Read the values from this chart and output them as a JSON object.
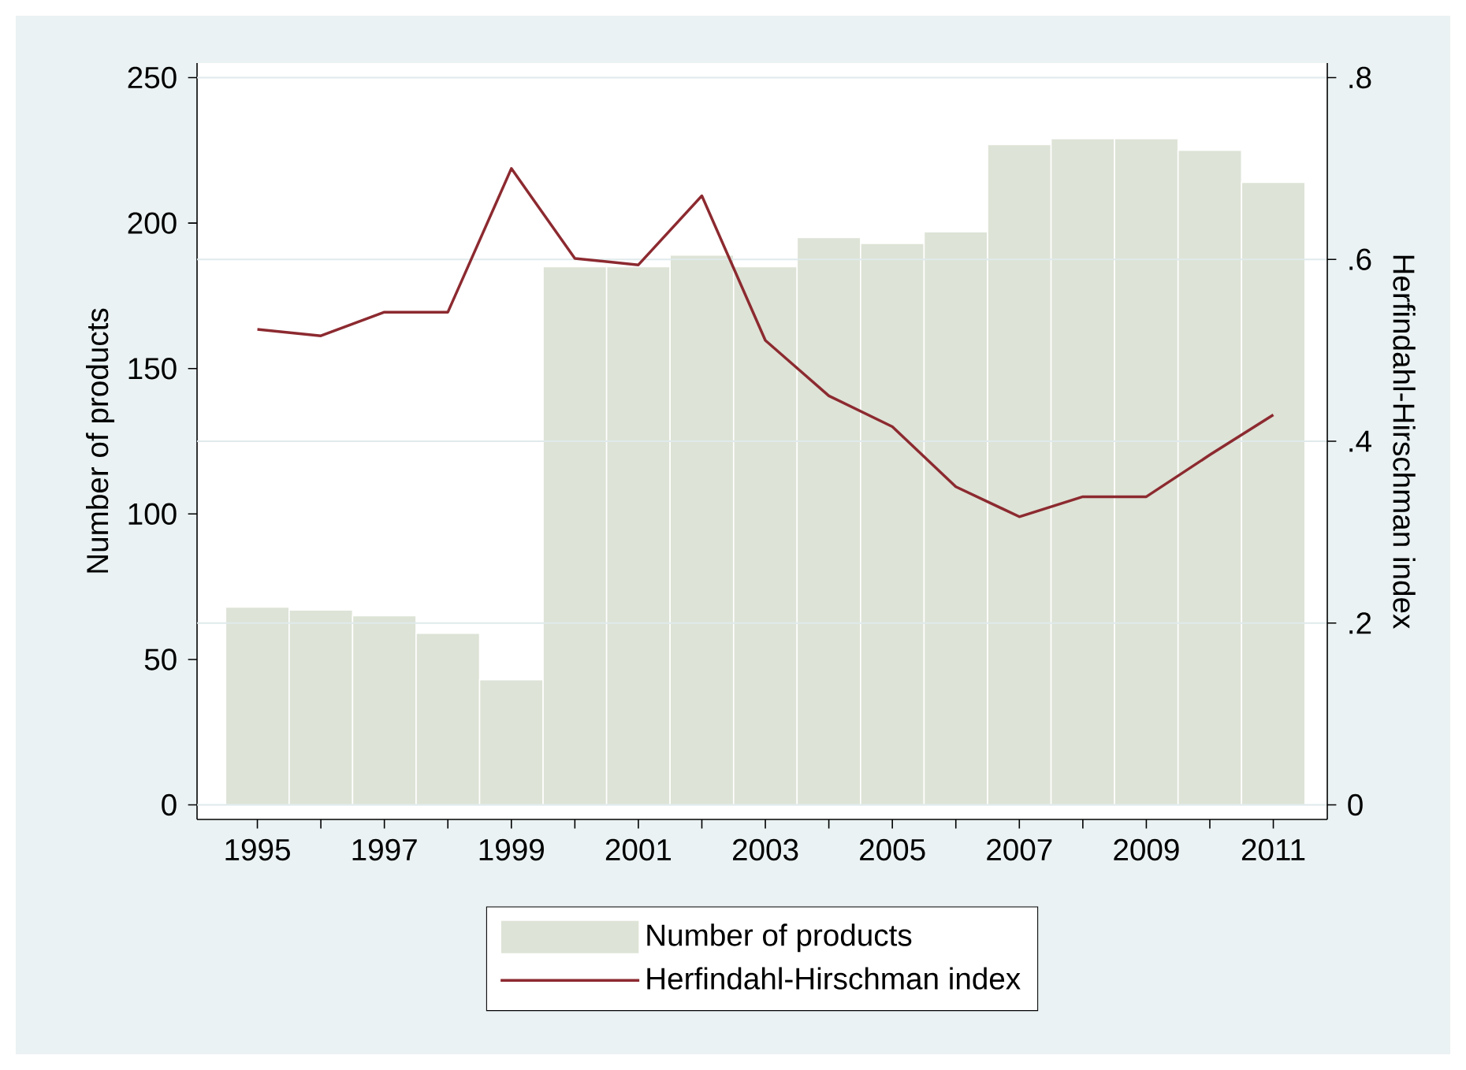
{
  "chart_data": {
    "type": "bar",
    "ylabel": "Number of products",
    "y2label": "Herfindahl-Hirschman index",
    "x": [
      1995,
      1996,
      1997,
      1998,
      1999,
      2000,
      2001,
      2002,
      2003,
      2004,
      2005,
      2006,
      2007,
      2008,
      2009,
      2010,
      2011
    ],
    "series": [
      {
        "name": "Number of products",
        "color": "#dde3d6",
        "values": [
          68,
          67,
          65,
          59,
          43,
          185,
          185,
          189,
          185,
          195,
          193,
          197,
          227,
          229,
          229,
          225,
          214
        ]
      },
      {
        "name": "Herfindahl-Hirschman index",
        "type": "line",
        "axis": "y2",
        "color": "#8c2a30",
        "values": [
          0.523,
          0.516,
          0.542,
          0.542,
          0.7,
          0.601,
          0.594,
          0.67,
          0.511,
          0.45,
          0.416,
          0.35,
          0.317,
          0.339,
          0.339,
          0.385,
          0.429
        ]
      }
    ],
    "xlim": [
      1994.05,
      2011.85
    ],
    "xticks": [
      1995,
      {
        "value": 1996,
        "label": null
      },
      1997,
      {
        "value": 1998,
        "label": null
      },
      1999,
      {
        "value": 2000,
        "label": null
      },
      2001,
      {
        "value": 2002,
        "label": null
      },
      2003,
      {
        "value": 2004,
        "label": null
      },
      2005,
      {
        "value": 2006,
        "label": null
      },
      2007,
      {
        "value": 2008,
        "label": null
      },
      2009,
      {
        "value": 2010,
        "label": null
      },
      2011
    ],
    "ylim": [
      -5,
      255
    ],
    "yticks": [
      0,
      50,
      100,
      150,
      200,
      250
    ],
    "y2lim": [
      -0.016,
      0.816
    ],
    "y2ticks": [
      0,
      {
        "value": 0.2,
        "label": ".2"
      },
      {
        "value": 0.4,
        "label": ".4"
      },
      {
        "value": 0.6,
        "label": ".6"
      },
      {
        "value": 0.8,
        "label": ".8"
      }
    ],
    "grid": "y2",
    "legend": "bottom"
  }
}
